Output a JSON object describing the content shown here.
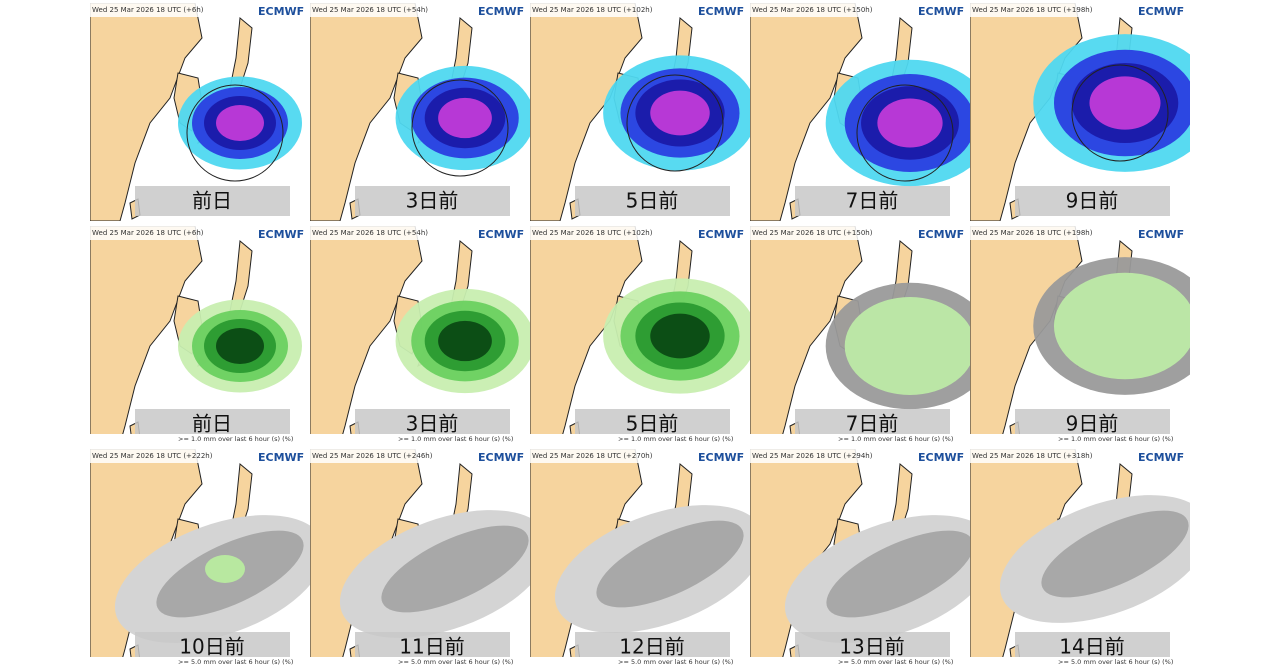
{
  "logo": "ECMWF",
  "rows": [
    {
      "panels": [
        {
          "header": "Wed 25 Mar 2026 18 UTC (+6h)",
          "label": "前日"
        },
        {
          "header": "Wed 25 Mar 2026 18 UTC (+54h)",
          "label": "3日前"
        },
        {
          "header": "Wed 25 Mar 2026 18 UTC (+102h)",
          "label": "5日前"
        },
        {
          "header": "Wed 25 Mar 2026 18 UTC (+150h)",
          "label": "7日前"
        },
        {
          "header": "Wed 25 Mar 2026 18 UTC (+198h)",
          "label": "9日前"
        }
      ]
    },
    {
      "footer": ">= 1.0 mm over last 6 hour (s) (%)",
      "panels": [
        {
          "header": "Wed 25 Mar 2026 18 UTC (+6h)",
          "label": "前日"
        },
        {
          "header": "Wed 25 Mar 2026 18 UTC (+54h)",
          "label": "3日前"
        },
        {
          "header": "Wed 25 Mar 2026 18 UTC (+102h)",
          "label": "5日前"
        },
        {
          "header": "Wed 25 Mar 2026 18 UTC (+150h)",
          "label": "7日前"
        },
        {
          "header": "Wed 25 Mar 2026 18 UTC (+198h)",
          "label": "9日前"
        }
      ]
    },
    {
      "footer": ">= 5.0 mm over last 6 hour (s) (%)",
      "panels": [
        {
          "header": "Wed 25 Mar 2026 18 UTC (+222h)",
          "label": "10日前"
        },
        {
          "header": "Wed 25 Mar 2026 18 UTC (+246h)",
          "label": "11日前"
        },
        {
          "header": "Wed 25 Mar 2026 18 UTC (+270h)",
          "label": "12日前"
        },
        {
          "header": "Wed 25 Mar 2026 18 UTC (+294h)",
          "label": "13日前"
        },
        {
          "header": "Wed 25 Mar 2026 18 UTC (+318h)",
          "label": "14日前"
        }
      ]
    }
  ]
}
